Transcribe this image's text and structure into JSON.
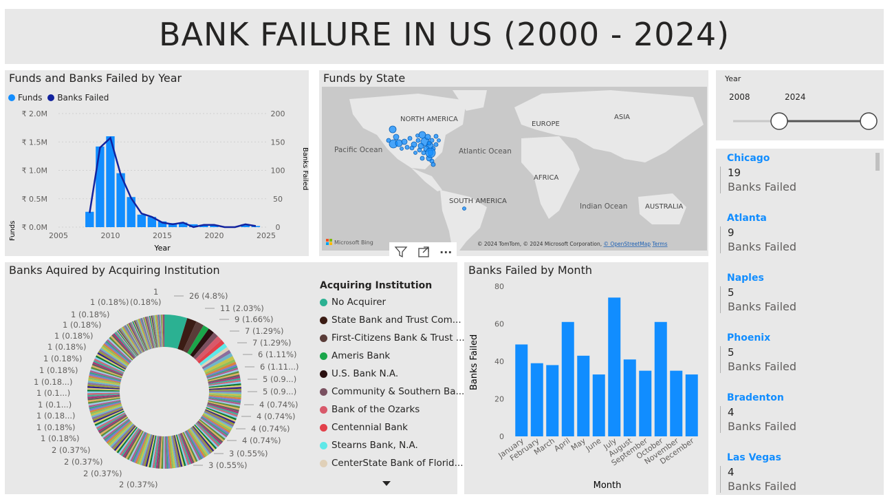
{
  "page_title": "BANK FAILURE IN US (2000 - 2024)",
  "year_chart": {
    "title": "Funds and Banks Failed by Year",
    "legend": [
      {
        "label": "Funds",
        "color": "#118dff"
      },
      {
        "label": "Banks Failed",
        "color": "#12239e"
      }
    ],
    "ylabel_left": "Funds",
    "ylabel_right": "Banks Failed",
    "xlabel": "Year",
    "left_ticks": [
      "₹ 0.0M",
      "₹ 0.5M",
      "₹ 1.0M",
      "₹ 1.5M",
      "₹ 2.0M"
    ],
    "right_ticks": [
      "0",
      "50",
      "100",
      "150",
      "200"
    ],
    "x_ticks": [
      "2005",
      "2010",
      "2015",
      "2020",
      "2025"
    ]
  },
  "map": {
    "title": "Funds by State",
    "labels": [
      "NORTH AMERICA",
      "EUROPE",
      "ASIA",
      "Pacific Ocean",
      "Atlantic Ocean",
      "AFRICA",
      "SOUTH AMERICA",
      "Indian Ocean",
      "AUSTRALIA"
    ],
    "bing": "Microsoft Bing",
    "credit": "© 2024 TomTom, © 2024 Microsoft Corporation,",
    "osm": "© OpenStreetMap",
    "terms": "Terms"
  },
  "slicer": {
    "label": "Year",
    "from": "2008",
    "to": "2024",
    "range": [
      2008,
      2024
    ]
  },
  "cards": [
    {
      "city": "Chicago",
      "value": "19",
      "label": "Banks Failed"
    },
    {
      "city": "Atlanta",
      "value": "9",
      "label": "Banks Failed"
    },
    {
      "city": "Naples",
      "value": "5",
      "label": "Banks Failed"
    },
    {
      "city": "Phoenix",
      "value": "5",
      "label": "Banks Failed"
    },
    {
      "city": "Bradenton",
      "value": "4",
      "label": "Banks Failed"
    },
    {
      "city": "Las Vegas",
      "value": "4",
      "label": "Banks Failed"
    }
  ],
  "donut": {
    "title": "Banks Aquired by Acquiring Institution",
    "legend_title": "Acquiring Institution",
    "legend": [
      {
        "label": "No Acquirer",
        "color": "#2bb192"
      },
      {
        "label": "State Bank and Trust Com...",
        "color": "#3b1c14"
      },
      {
        "label": "First-Citizens Bank & Trust ...",
        "color": "#5a3c38"
      },
      {
        "label": "Ameris Bank",
        "color": "#1aa64a"
      },
      {
        "label": "U.S. Bank N.A.",
        "color": "#2a1010"
      },
      {
        "label": "Community & Southern Ba...",
        "color": "#7a5060"
      },
      {
        "label": "Bank of the Ozarks",
        "color": "#d8596a"
      },
      {
        "label": "Centennial Bank",
        "color": "#e2404a"
      },
      {
        "label": "Stearns Bank, N.A.",
        "color": "#5fe8e8"
      },
      {
        "label": "CenterState Bank of Florid...",
        "color": "#e0d0b8"
      }
    ],
    "right_labels": [
      "26 (4.8%)",
      "11 (2.03%)",
      "9 (1.66%)",
      "7 (1.29%)",
      "7 (1.29%)",
      "6 (1.11%)",
      "6 (1.11...)",
      "5 (0.9...)",
      "5 (0.9...)",
      "4 (0.74%)",
      "4 (0.74%)",
      "4 (0.74%)",
      "4 (0.74%)",
      "3 (0.55%)",
      "3 (0.55%)"
    ],
    "left_labels": [
      "1",
      "1 (0.18%)",
      "(0.18%)",
      "1 (0.18%)",
      "1 (0.18%)",
      "1 (0.18%)",
      "1 (0.18%)",
      "1 (0.18%)",
      "1 (0.18%)",
      "1 (0.18...)",
      "1 (0.1...)",
      "1 (0.1...)",
      "1 (0.18...)",
      "1 (0.18%)",
      "1 (0.18%)",
      "2 (0.37%)",
      "2 (0.37%)",
      "2 (0.37%)",
      "2 (0.37%)"
    ]
  },
  "month_chart": {
    "title": "Banks Failed by Month",
    "ylabel": "Banks Failed",
    "xlabel": "Month",
    "y_ticks": [
      "0",
      "20",
      "40",
      "60",
      "80"
    ]
  },
  "toolbar": {
    "filter_icon": "filter-icon",
    "focus_icon": "focus-mode-icon",
    "more_icon": "more-options-icon",
    "more_label": "···"
  },
  "chart_data": [
    {
      "type": "bar",
      "title": "Funds and Banks Failed by Year",
      "x": [
        2008,
        2009,
        2010,
        2011,
        2012,
        2013,
        2014,
        2015,
        2016,
        2017,
        2018,
        2019,
        2020,
        2021,
        2022,
        2023,
        2024
      ],
      "series": [
        {
          "name": "Funds",
          "values": [
            0.27,
            1.42,
            1.6,
            0.95,
            0.53,
            0.22,
            0.18,
            0.1,
            0.07,
            0.08,
            0.05,
            0.04,
            0.04,
            0.0,
            0.0,
            0.05,
            0.02
          ]
        },
        {
          "name": "Banks Failed",
          "values": [
            25,
            140,
            157,
            92,
            51,
            24,
            18,
            8,
            5,
            8,
            0,
            4,
            4,
            0,
            0,
            5,
            2
          ]
        }
      ],
      "xlim": [
        2005,
        2025
      ],
      "ylim_left": [
        0,
        2.0
      ],
      "ylim_right": [
        0,
        200
      ],
      "xlabel": "Year",
      "ylabel": "Funds"
    },
    {
      "type": "bar",
      "title": "Banks Failed by Month",
      "categories": [
        "January",
        "February",
        "March",
        "April",
        "May",
        "June",
        "July",
        "August",
        "September",
        "October",
        "November",
        "December"
      ],
      "values": [
        49,
        39,
        38,
        61,
        43,
        33,
        74,
        41,
        35,
        61,
        35,
        33
      ],
      "ylim": [
        0,
        80
      ],
      "xlabel": "Month",
      "ylabel": "Banks Failed"
    },
    {
      "type": "pie",
      "title": "Banks Aquired by Acquiring Institution",
      "categories": [
        "No Acquirer",
        "State Bank and Trust Com...",
        "First-Citizens Bank & Trust ...",
        "Ameris Bank",
        "U.S. Bank N.A.",
        "Community & Southern Ba...",
        "Bank of the Ozarks",
        "Centennial Bank",
        "Stearns Bank, N.A.",
        "CenterState Bank of Florid..."
      ],
      "values": [
        26,
        11,
        9,
        7,
        7,
        6,
        6,
        5,
        5,
        4
      ]
    }
  ]
}
